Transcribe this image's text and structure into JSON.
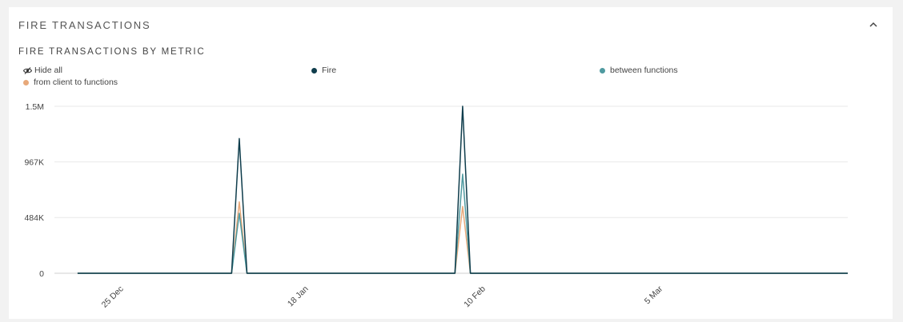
{
  "panel": {
    "title": "FIRE TRANSACTIONS"
  },
  "section": {
    "title": "FIRE TRANSACTIONS BY METRIC"
  },
  "legend": {
    "hide_all_label": "Hide all",
    "items": [
      {
        "label": "Fire",
        "color": "#0f3d4c"
      },
      {
        "label": "between functions",
        "color": "#4f9aa0"
      },
      {
        "label": "from client to functions",
        "color": "#e8a97a"
      }
    ]
  },
  "icons": {
    "collapse": "chevron-up-icon",
    "hide_all": "eye-slash-icon"
  },
  "chart_data": {
    "type": "line",
    "x_tick_labels": [
      "25 Dec",
      "18 Jan",
      "10 Feb",
      "5 Mar"
    ],
    "y_tick_labels": [
      "0",
      "484K",
      "967K",
      "1.5M"
    ],
    "ylim": [
      0,
      1450000
    ],
    "grid": true,
    "legend_position": "top",
    "x": [
      "2021-12-19",
      "2022-01-01",
      "2022-01-08",
      "2022-01-09",
      "2022-01-10",
      "2022-02-06",
      "2022-02-07",
      "2022-02-08",
      "2022-03-29"
    ],
    "series": [
      {
        "name": "Fire",
        "color": "#0f3d4c",
        "values": [
          0,
          0,
          0,
          1170000,
          0,
          0,
          1450000,
          0,
          0
        ]
      },
      {
        "name": "between functions",
        "color": "#4f9aa0",
        "values": [
          0,
          0,
          0,
          520000,
          0,
          0,
          860000,
          0,
          0
        ]
      },
      {
        "name": "from client to functions",
        "color": "#e8a97a",
        "values": [
          0,
          0,
          0,
          620000,
          0,
          0,
          580000,
          0,
          0
        ]
      }
    ]
  }
}
